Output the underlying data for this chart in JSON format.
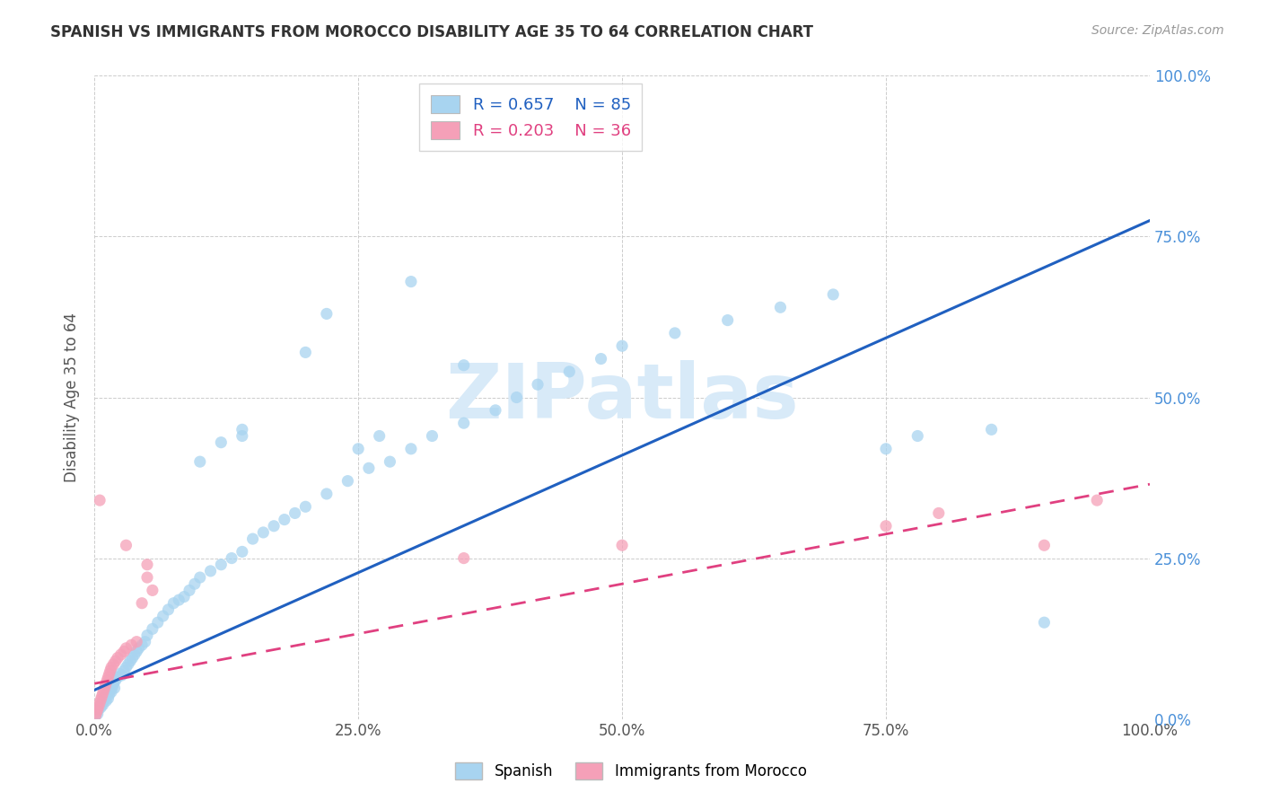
{
  "title": "SPANISH VS IMMIGRANTS FROM MOROCCO DISABILITY AGE 35 TO 64 CORRELATION CHART",
  "source_text": "Source: ZipAtlas.com",
  "ylabel": "Disability Age 35 to 64",
  "xticklabels": [
    "0.0%",
    "25.0%",
    "50.0%",
    "75.0%",
    "100.0%"
  ],
  "yticklabels_right": [
    "0.0%",
    "25.0%",
    "50.0%",
    "75.0%",
    "100.0%"
  ],
  "xlim": [
    0,
    1.0
  ],
  "ylim": [
    0,
    1.0
  ],
  "legend1_r": "0.657",
  "legend1_n": "85",
  "legend2_r": "0.203",
  "legend2_n": "36",
  "spanish_color": "#a8d4f0",
  "morocco_color": "#f5a0b8",
  "spanish_line_color": "#2060c0",
  "morocco_line_color": "#e04080",
  "watermark_color": "#d8eaf8",
  "watermark_text": "ZIPatlas",
  "ytick_color": "#4a90d9",
  "xtick_color": "#555555",
  "spanish_line": [
    0.0,
    0.045,
    1.0,
    0.775
  ],
  "morocco_line": [
    0.0,
    0.055,
    1.0,
    0.365
  ],
  "spanish_points": [
    [
      0.001,
      0.005
    ],
    [
      0.002,
      0.01
    ],
    [
      0.003,
      0.008
    ],
    [
      0.004,
      0.015
    ],
    [
      0.005,
      0.02
    ],
    [
      0.006,
      0.018
    ],
    [
      0.007,
      0.025
    ],
    [
      0.008,
      0.022
    ],
    [
      0.009,
      0.03
    ],
    [
      0.01,
      0.035
    ],
    [
      0.011,
      0.028
    ],
    [
      0.012,
      0.04
    ],
    [
      0.013,
      0.032
    ],
    [
      0.014,
      0.038
    ],
    [
      0.015,
      0.045
    ],
    [
      0.016,
      0.042
    ],
    [
      0.017,
      0.05
    ],
    [
      0.018,
      0.055
    ],
    [
      0.019,
      0.048
    ],
    [
      0.02,
      0.06
    ],
    [
      0.022,
      0.065
    ],
    [
      0.024,
      0.07
    ],
    [
      0.026,
      0.068
    ],
    [
      0.028,
      0.075
    ],
    [
      0.03,
      0.08
    ],
    [
      0.032,
      0.085
    ],
    [
      0.034,
      0.09
    ],
    [
      0.036,
      0.095
    ],
    [
      0.038,
      0.1
    ],
    [
      0.04,
      0.105
    ],
    [
      0.042,
      0.11
    ],
    [
      0.045,
      0.115
    ],
    [
      0.048,
      0.12
    ],
    [
      0.05,
      0.13
    ],
    [
      0.055,
      0.14
    ],
    [
      0.06,
      0.15
    ],
    [
      0.065,
      0.16
    ],
    [
      0.07,
      0.17
    ],
    [
      0.075,
      0.18
    ],
    [
      0.08,
      0.185
    ],
    [
      0.085,
      0.19
    ],
    [
      0.09,
      0.2
    ],
    [
      0.095,
      0.21
    ],
    [
      0.1,
      0.22
    ],
    [
      0.11,
      0.23
    ],
    [
      0.12,
      0.24
    ],
    [
      0.13,
      0.25
    ],
    [
      0.14,
      0.26
    ],
    [
      0.15,
      0.28
    ],
    [
      0.16,
      0.29
    ],
    [
      0.17,
      0.3
    ],
    [
      0.18,
      0.31
    ],
    [
      0.19,
      0.32
    ],
    [
      0.2,
      0.33
    ],
    [
      0.22,
      0.35
    ],
    [
      0.24,
      0.37
    ],
    [
      0.26,
      0.39
    ],
    [
      0.28,
      0.4
    ],
    [
      0.3,
      0.42
    ],
    [
      0.32,
      0.44
    ],
    [
      0.35,
      0.46
    ],
    [
      0.38,
      0.48
    ],
    [
      0.4,
      0.5
    ],
    [
      0.42,
      0.52
    ],
    [
      0.45,
      0.54
    ],
    [
      0.48,
      0.56
    ],
    [
      0.5,
      0.58
    ],
    [
      0.55,
      0.6
    ],
    [
      0.6,
      0.62
    ],
    [
      0.65,
      0.64
    ],
    [
      0.7,
      0.66
    ],
    [
      0.2,
      0.57
    ],
    [
      0.22,
      0.63
    ],
    [
      0.3,
      0.68
    ],
    [
      0.25,
      0.42
    ],
    [
      0.27,
      0.44
    ],
    [
      0.35,
      0.55
    ],
    [
      0.75,
      0.42
    ],
    [
      0.78,
      0.44
    ],
    [
      0.85,
      0.45
    ],
    [
      0.9,
      0.15
    ],
    [
      0.1,
      0.4
    ],
    [
      0.12,
      0.43
    ],
    [
      0.14,
      0.44
    ],
    [
      0.14,
      0.45
    ]
  ],
  "morocco_points": [
    [
      0.001,
      0.005
    ],
    [
      0.002,
      0.01
    ],
    [
      0.003,
      0.015
    ],
    [
      0.004,
      0.02
    ],
    [
      0.005,
      0.025
    ],
    [
      0.006,
      0.03
    ],
    [
      0.007,
      0.035
    ],
    [
      0.008,
      0.04
    ],
    [
      0.009,
      0.045
    ],
    [
      0.01,
      0.05
    ],
    [
      0.011,
      0.055
    ],
    [
      0.012,
      0.06
    ],
    [
      0.013,
      0.065
    ],
    [
      0.014,
      0.07
    ],
    [
      0.015,
      0.075
    ],
    [
      0.016,
      0.08
    ],
    [
      0.018,
      0.085
    ],
    [
      0.02,
      0.09
    ],
    [
      0.022,
      0.095
    ],
    [
      0.025,
      0.1
    ],
    [
      0.028,
      0.105
    ],
    [
      0.03,
      0.11
    ],
    [
      0.035,
      0.115
    ],
    [
      0.04,
      0.12
    ],
    [
      0.045,
      0.18
    ],
    [
      0.05,
      0.22
    ],
    [
      0.03,
      0.27
    ],
    [
      0.05,
      0.24
    ],
    [
      0.055,
      0.2
    ],
    [
      0.35,
      0.25
    ],
    [
      0.5,
      0.27
    ],
    [
      0.75,
      0.3
    ],
    [
      0.8,
      0.32
    ],
    [
      0.9,
      0.27
    ],
    [
      0.95,
      0.34
    ],
    [
      0.005,
      0.34
    ]
  ]
}
